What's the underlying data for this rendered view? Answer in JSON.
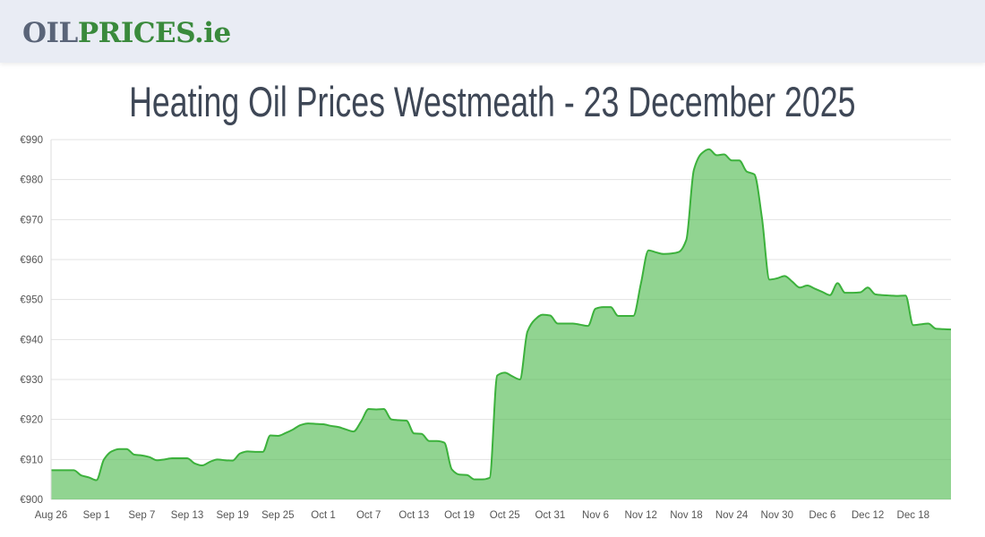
{
  "header": {
    "logo_part1": "OIL",
    "logo_part2": "PRICES.ie"
  },
  "page_title": "Heating Oil Prices Westmeath - 23 December 2025",
  "chart_data": {
    "type": "area",
    "title": "",
    "xlabel": "",
    "ylabel": "",
    "ylim": [
      900,
      990
    ],
    "y_ticks": [
      "€900",
      "€910",
      "€920",
      "€930",
      "€940",
      "€950",
      "€960",
      "€970",
      "€980",
      "€990"
    ],
    "y_tick_values": [
      900,
      910,
      920,
      930,
      940,
      950,
      960,
      970,
      980,
      990
    ],
    "x_ticks": [
      "Aug 26",
      "Sep 1",
      "Sep 7",
      "Sep 13",
      "Sep 19",
      "Sep 25",
      "Oct 1",
      "Oct 7",
      "Oct 13",
      "Oct 19",
      "Oct 25",
      "Oct 31",
      "Nov 6",
      "Nov 12",
      "Nov 18",
      "Nov 24",
      "Nov 30",
      "Dec 6",
      "Dec 12",
      "Dec 18"
    ],
    "grid": true,
    "colors": {
      "line": "#3cb13c",
      "fill": "#93d693",
      "grid": "#e3e3e3"
    },
    "dates": [
      "Aug 26",
      "Aug 27",
      "Aug 28",
      "Aug 29",
      "Aug 30",
      "Aug 31",
      "Sep 1",
      "Sep 2",
      "Sep 3",
      "Sep 4",
      "Sep 5",
      "Sep 6",
      "Sep 7",
      "Sep 8",
      "Sep 9",
      "Sep 10",
      "Sep 11",
      "Sep 12",
      "Sep 13",
      "Sep 14",
      "Sep 15",
      "Sep 16",
      "Sep 17",
      "Sep 18",
      "Sep 19",
      "Sep 20",
      "Sep 21",
      "Sep 22",
      "Sep 23",
      "Sep 24",
      "Sep 25",
      "Sep 26",
      "Sep 27",
      "Sep 28",
      "Sep 29",
      "Sep 30",
      "Oct 1",
      "Oct 2",
      "Oct 3",
      "Oct 4",
      "Oct 5",
      "Oct 6",
      "Oct 7",
      "Oct 8",
      "Oct 9",
      "Oct 10",
      "Oct 11",
      "Oct 12",
      "Oct 13",
      "Oct 14",
      "Oct 15",
      "Oct 16",
      "Oct 17",
      "Oct 18",
      "Oct 19",
      "Oct 20",
      "Oct 21",
      "Oct 22",
      "Oct 23",
      "Oct 24",
      "Oct 25",
      "Oct 26",
      "Oct 27",
      "Oct 28",
      "Oct 29",
      "Oct 30",
      "Oct 31",
      "Nov 1",
      "Nov 2",
      "Nov 3",
      "Nov 4",
      "Nov 5",
      "Nov 6",
      "Nov 7",
      "Nov 8",
      "Nov 9",
      "Nov 10",
      "Nov 11",
      "Nov 12",
      "Nov 13",
      "Nov 14",
      "Nov 15",
      "Nov 16",
      "Nov 17",
      "Nov 18",
      "Nov 19",
      "Nov 20",
      "Nov 21",
      "Nov 22",
      "Nov 23",
      "Nov 24",
      "Nov 25",
      "Nov 26",
      "Nov 27",
      "Nov 28",
      "Nov 29",
      "Nov 30",
      "Dec 1",
      "Dec 2",
      "Dec 3",
      "Dec 4",
      "Dec 5",
      "Dec 6",
      "Dec 7",
      "Dec 8",
      "Dec 9",
      "Dec 10",
      "Dec 11",
      "Dec 12",
      "Dec 13",
      "Dec 14",
      "Dec 15",
      "Dec 16",
      "Dec 17",
      "Dec 18",
      "Dec 19",
      "Dec 20",
      "Dec 21",
      "Dec 22",
      "Dec 23"
    ],
    "values": [
      907.3,
      907.3,
      907.3,
      907.3,
      906.0,
      905.5,
      904.8,
      910.0,
      912.0,
      912.6,
      912.6,
      911.2,
      911.0,
      910.6,
      909.8,
      910.0,
      910.3,
      910.3,
      910.3,
      909.0,
      908.5,
      909.4,
      910.0,
      909.8,
      909.7,
      911.5,
      912.0,
      911.9,
      911.9,
      916.0,
      915.9,
      916.6,
      917.5,
      918.6,
      919.0,
      918.9,
      918.8,
      918.4,
      918.1,
      917.5,
      917.0,
      919.5,
      922.6,
      922.5,
      922.6,
      920.0,
      919.8,
      919.7,
      916.5,
      916.4,
      914.6,
      914.6,
      914.2,
      907.5,
      906.2,
      906.1,
      905.0,
      905.0,
      905.4,
      931.0,
      931.7,
      930.8,
      930.0,
      942.0,
      945.0,
      946.2,
      946.0,
      944.0,
      944.0,
      944.0,
      943.7,
      943.4,
      947.7,
      948.1,
      948.1,
      945.9,
      945.9,
      945.9,
      954.0,
      962.3,
      961.8,
      961.4,
      961.5,
      961.9,
      964.9,
      982.4,
      986.5,
      987.6,
      986.1,
      986.3,
      984.8,
      984.8,
      982.0,
      981.3,
      970.5,
      955.0,
      955.3,
      955.9,
      954.5,
      953.0,
      953.5,
      952.7,
      951.9,
      951.1,
      954.1,
      951.7,
      951.7,
      951.8,
      953.0,
      951.3,
      951.1,
      951.0,
      950.9,
      951.0,
      943.6,
      943.8,
      944.0,
      942.7,
      942.6,
      942.5
    ]
  }
}
